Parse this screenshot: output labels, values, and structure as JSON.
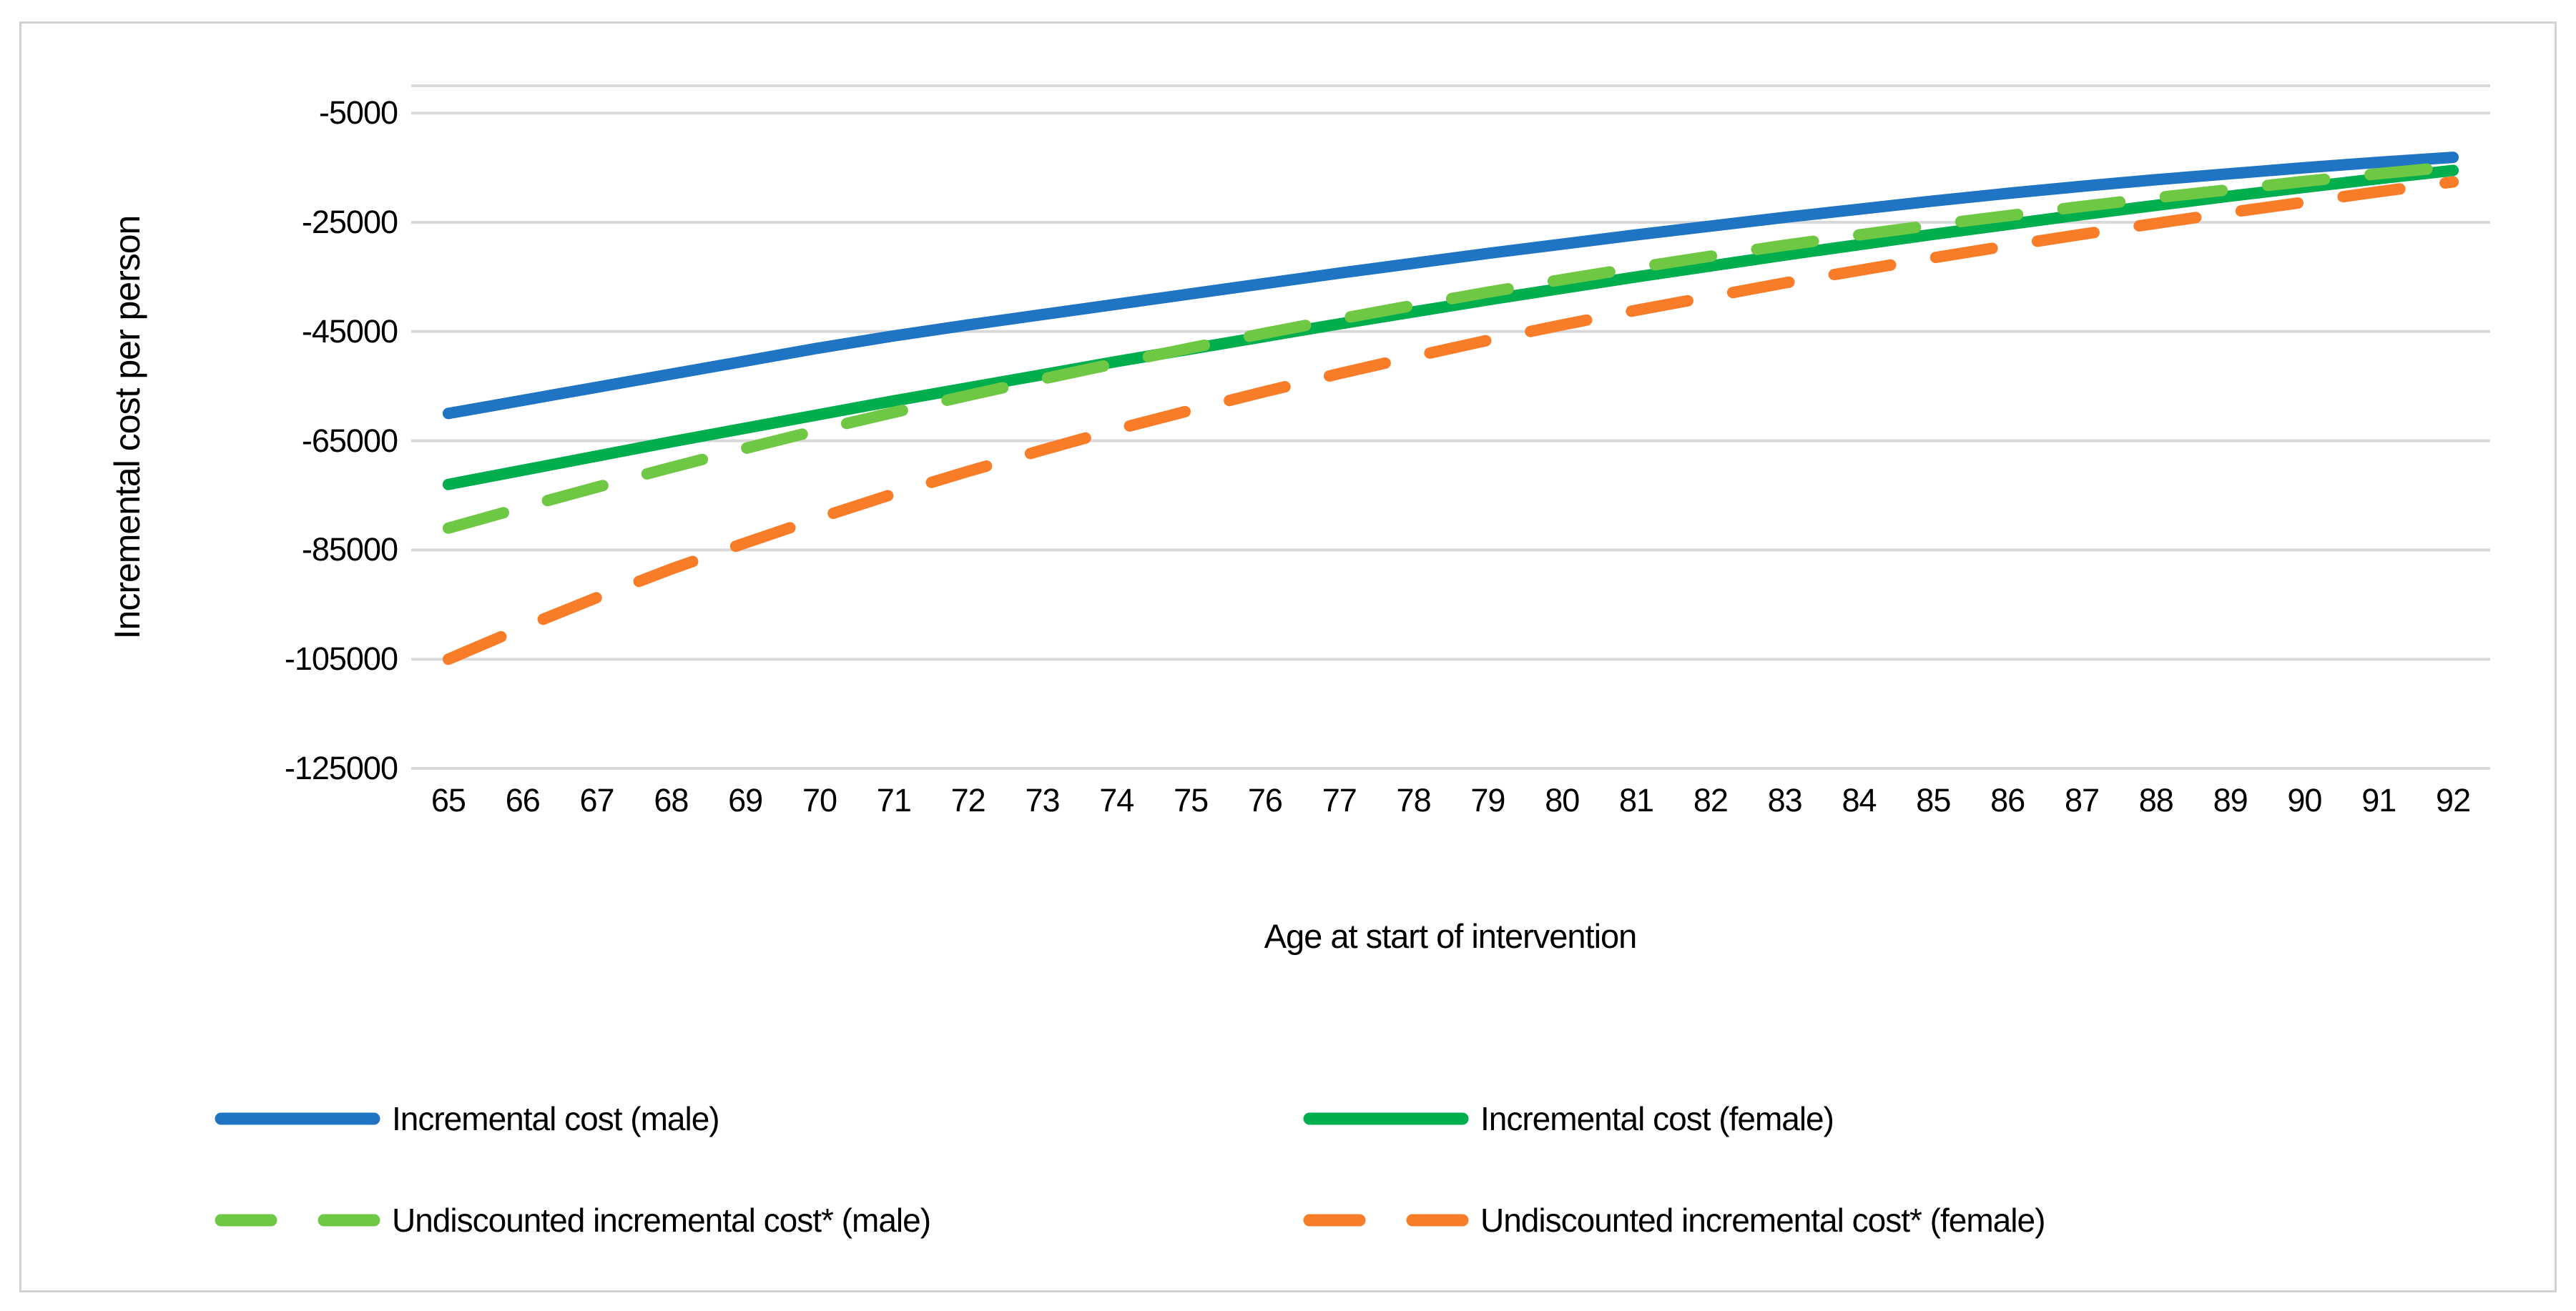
{
  "figure": {
    "y_axis_title": "Incremental cost per person",
    "x_axis_title": "Age at start of intervention",
    "colors": {
      "gridline": "#d9d9d9",
      "card_border": "#d2d2d2",
      "text": "#000000"
    }
  },
  "chart_data": {
    "type": "line",
    "title": "",
    "xlabel": "Age at start of intervention",
    "ylabel": "Incremental cost per person",
    "x": [
      65,
      66,
      67,
      68,
      69,
      70,
      71,
      72,
      73,
      74,
      75,
      76,
      77,
      78,
      79,
      80,
      81,
      82,
      83,
      84,
      85,
      86,
      87,
      88,
      89,
      90,
      91,
      92
    ],
    "ylim": [
      -125000,
      0
    ],
    "y_ticks": [
      -5000,
      -25000,
      -45000,
      -65000,
      -85000,
      -105000,
      -125000
    ],
    "grid": "horizontal",
    "legend_position": "bottom",
    "series": [
      {
        "name": "Incremental cost (male)",
        "color": "#1f74c4",
        "style": "solid",
        "values": [
          -60000,
          -57600,
          -55200,
          -52800,
          -50400,
          -48000,
          -45800,
          -43800,
          -41900,
          -40000,
          -38100,
          -36200,
          -34300,
          -32500,
          -30700,
          -29000,
          -27300,
          -25700,
          -24100,
          -22600,
          -21100,
          -19700,
          -18400,
          -17200,
          -16100,
          -15000,
          -14000,
          -13100
        ]
      },
      {
        "name": "Incremental cost (female)",
        "color": "#00ae4e",
        "style": "solid",
        "values": [
          -73000,
          -70400,
          -67800,
          -65200,
          -62700,
          -60200,
          -57700,
          -55300,
          -52900,
          -50500,
          -48200,
          -45900,
          -43600,
          -41400,
          -39200,
          -37100,
          -35000,
          -33000,
          -31000,
          -29100,
          -27200,
          -25400,
          -23600,
          -21900,
          -20200,
          -18600,
          -17000,
          -15500
        ]
      },
      {
        "name": "Undiscounted incremental cost* (male)",
        "color": "#6fc843",
        "style": "dashed",
        "values": [
          -81000,
          -77200,
          -73500,
          -69900,
          -66400,
          -63000,
          -59800,
          -56700,
          -53700,
          -50800,
          -48000,
          -45300,
          -42700,
          -40200,
          -37800,
          -35500,
          -33300,
          -31200,
          -29200,
          -27300,
          -25500,
          -23800,
          -22100,
          -20500,
          -19000,
          -17500,
          -16100,
          -14800
        ]
      },
      {
        "name": "Undiscounted incremental cost* (female)",
        "color": "#f97d28",
        "style": "dashed",
        "values": [
          -105000,
          -99200,
          -93700,
          -88500,
          -83700,
          -79100,
          -74700,
          -70600,
          -66700,
          -62900,
          -59400,
          -56000,
          -52700,
          -49600,
          -46600,
          -43800,
          -41100,
          -38600,
          -36100,
          -33800,
          -31500,
          -29300,
          -27200,
          -25200,
          -23200,
          -21300,
          -19400,
          -17600
        ]
      }
    ]
  }
}
